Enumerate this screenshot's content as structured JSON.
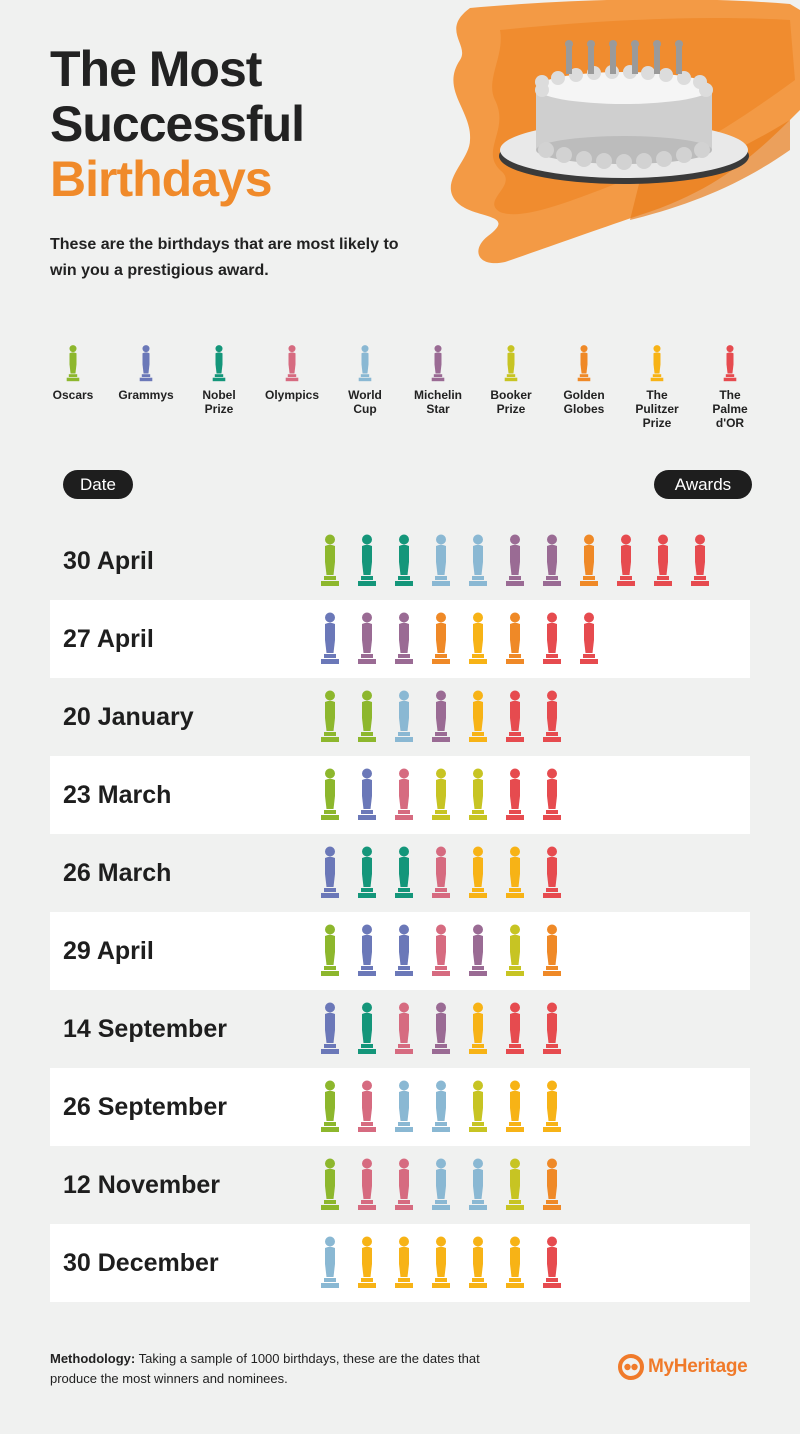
{
  "header": {
    "title_line1": "The Most",
    "title_line2": "Successful",
    "title_line3": "Birthdays",
    "subtitle": "These are the birthdays that are most likely to win you a prestigious award."
  },
  "colors": {
    "accent": "#f08a2a",
    "background": "#f0f1f0",
    "pill": "#1e1e1e"
  },
  "legend": [
    {
      "key": "oscars",
      "label": "Oscars",
      "color": "#8db72d"
    },
    {
      "key": "grammys",
      "label": "Grammys",
      "color": "#6b78b8"
    },
    {
      "key": "nobel",
      "label": "Nobel\nPrize",
      "color": "#14967a"
    },
    {
      "key": "olympics",
      "label": "Olympics",
      "color": "#d66b80"
    },
    {
      "key": "worldcup",
      "label": "World\nCup",
      "color": "#8ab8d3"
    },
    {
      "key": "michelin",
      "label": "Michelin\nStar",
      "color": "#9a6b94"
    },
    {
      "key": "booker",
      "label": "Booker\nPrize",
      "color": "#c7c423"
    },
    {
      "key": "golden",
      "label": "Golden\nGlobes",
      "color": "#ef8927"
    },
    {
      "key": "pulitzer",
      "label": "The\nPulitzer\nPrize",
      "color": "#f7b316"
    },
    {
      "key": "palme",
      "label": "The\nPalme\nd'OR",
      "color": "#e64b4f"
    }
  ],
  "axis": {
    "date_label": "Date",
    "awards_label": "Awards"
  },
  "chart_data": {
    "type": "table",
    "columns": [
      "Date",
      "Awards"
    ],
    "rows": [
      {
        "date": "30 April",
        "awards": [
          "oscars",
          "nobel",
          "nobel",
          "worldcup",
          "worldcup",
          "michelin",
          "michelin",
          "golden",
          "palme",
          "palme",
          "palme"
        ]
      },
      {
        "date": "27 April",
        "awards": [
          "grammys",
          "michelin",
          "michelin",
          "golden",
          "pulitzer",
          "golden",
          "palme",
          "palme"
        ]
      },
      {
        "date": "20 January",
        "awards": [
          "oscars",
          "oscars",
          "worldcup",
          "michelin",
          "pulitzer",
          "palme",
          "palme"
        ]
      },
      {
        "date": "23 March",
        "awards": [
          "oscars",
          "grammys",
          "olympics",
          "booker",
          "booker",
          "palme",
          "palme"
        ]
      },
      {
        "date": "26 March",
        "awards": [
          "grammys",
          "nobel",
          "nobel",
          "olympics",
          "pulitzer",
          "pulitzer",
          "palme"
        ]
      },
      {
        "date": "29 April",
        "awards": [
          "oscars",
          "grammys",
          "grammys",
          "olympics",
          "michelin",
          "booker",
          "golden"
        ]
      },
      {
        "date": "14 September",
        "awards": [
          "grammys",
          "nobel",
          "olympics",
          "michelin",
          "pulitzer",
          "palme",
          "palme"
        ]
      },
      {
        "date": "26 September",
        "awards": [
          "oscars",
          "olympics",
          "worldcup",
          "worldcup",
          "booker",
          "pulitzer",
          "pulitzer"
        ]
      },
      {
        "date": "12 November",
        "awards": [
          "oscars",
          "olympics",
          "olympics",
          "worldcup",
          "worldcup",
          "booker",
          "golden"
        ]
      },
      {
        "date": "30 December",
        "awards": [
          "worldcup",
          "pulitzer",
          "pulitzer",
          "pulitzer",
          "pulitzer",
          "pulitzer",
          "palme"
        ]
      }
    ]
  },
  "footer": {
    "methodology_label": "Methodology:",
    "methodology_text": " Taking a sample of 1000 birthdays, these are the dates that produce the most winners and nominees.",
    "brand": "MyHeritage"
  }
}
